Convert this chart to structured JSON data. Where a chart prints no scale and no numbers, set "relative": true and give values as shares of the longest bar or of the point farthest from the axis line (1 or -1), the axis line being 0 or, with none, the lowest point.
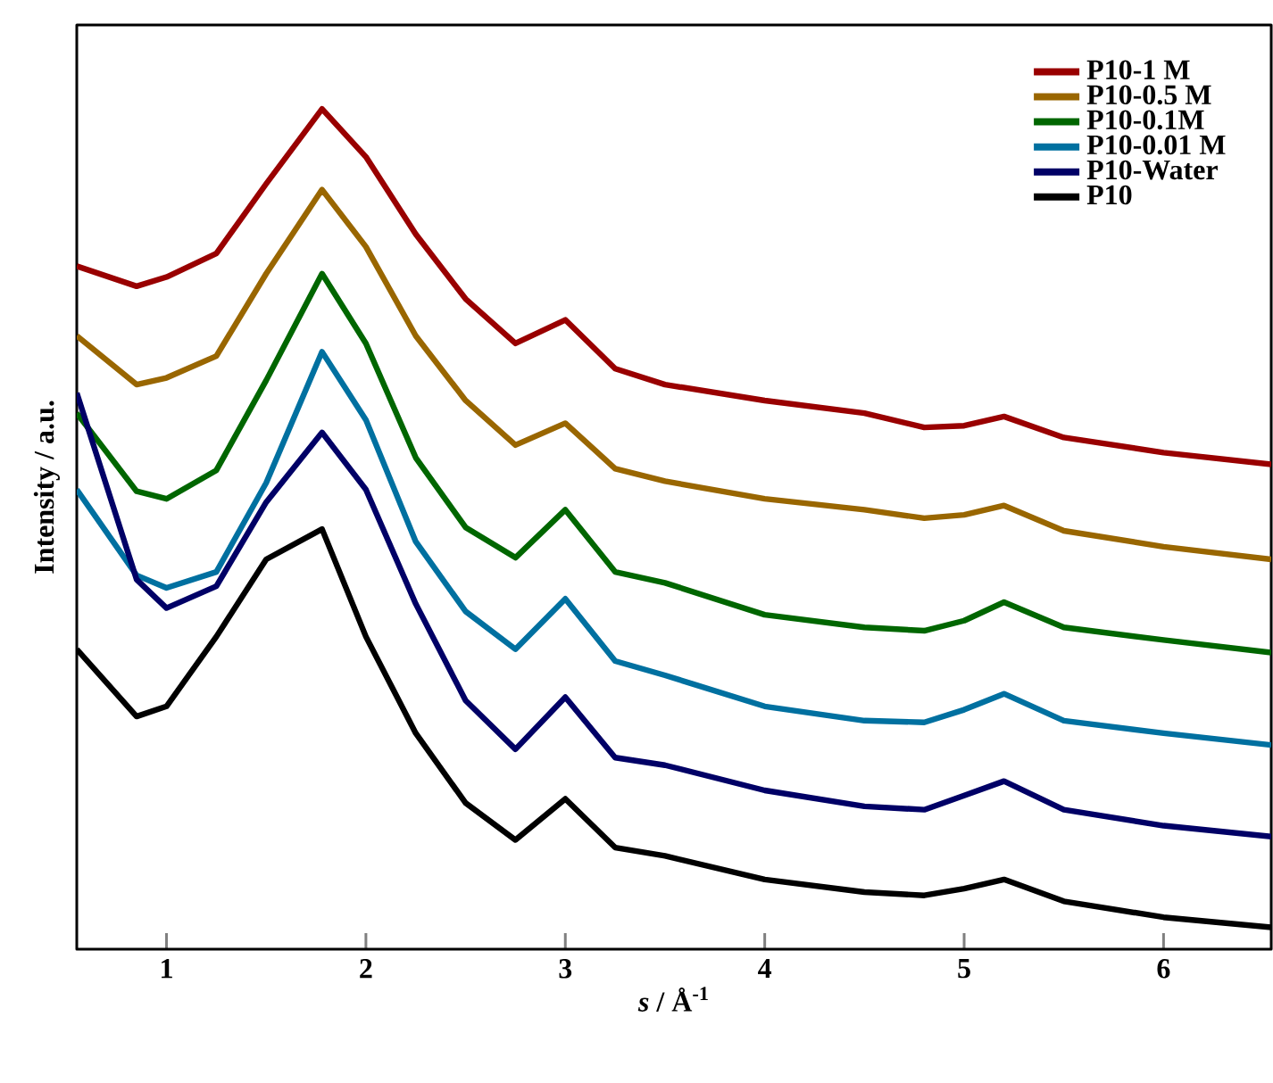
{
  "chart_data": {
    "type": "line",
    "relative": true,
    "xlabel": "*s* / Å$^{-1}$",
    "ylabel": "Intensity / a.u.",
    "x": [
      0.55,
      0.85,
      1.0,
      1.25,
      1.5,
      1.78,
      2.0,
      2.25,
      2.5,
      2.75,
      3.0,
      3.25,
      3.5,
      4.0,
      4.5,
      4.8,
      5.0,
      5.2,
      5.5,
      6.0,
      6.54
    ],
    "xlim": [
      0.55,
      6.54
    ],
    "xticks": [
      1,
      2,
      3,
      4,
      5,
      6
    ],
    "legend": "top right",
    "marker": "none",
    "line_style": "solid",
    "grid": false,
    "series": [
      {
        "name": "P10-1 M",
        "color": "#990000",
        "values": [
          0.813,
          0.789,
          0.8,
          0.828,
          0.911,
          1.0,
          0.943,
          0.851,
          0.774,
          0.721,
          0.749,
          0.691,
          0.672,
          0.653,
          0.638,
          0.621,
          0.623,
          0.634,
          0.609,
          0.591,
          0.577
        ]
      },
      {
        "name": "P10-0.5 M",
        "color": "#996600",
        "values": [
          0.73,
          0.672,
          0.68,
          0.706,
          0.804,
          0.904,
          0.836,
          0.73,
          0.653,
          0.6,
          0.626,
          0.572,
          0.557,
          0.536,
          0.523,
          0.513,
          0.517,
          0.528,
          0.498,
          0.479,
          0.464
        ]
      },
      {
        "name": "P10-0.1M",
        "color": "#006600",
        "values": [
          0.638,
          0.545,
          0.536,
          0.57,
          0.677,
          0.804,
          0.721,
          0.585,
          0.502,
          0.466,
          0.523,
          0.449,
          0.436,
          0.398,
          0.383,
          0.379,
          0.391,
          0.413,
          0.383,
          0.368,
          0.353
        ]
      },
      {
        "name": "P10-0.01 M",
        "color": "#0070a0",
        "values": [
          0.547,
          0.445,
          0.43,
          0.449,
          0.555,
          0.711,
          0.63,
          0.485,
          0.402,
          0.357,
          0.417,
          0.343,
          0.326,
          0.289,
          0.272,
          0.27,
          0.285,
          0.304,
          0.272,
          0.257,
          0.243
        ]
      },
      {
        "name": "P10-Water",
        "color": "#000066",
        "values": [
          0.662,
          0.44,
          0.406,
          0.432,
          0.532,
          0.615,
          0.547,
          0.411,
          0.296,
          0.238,
          0.3,
          0.228,
          0.219,
          0.189,
          0.17,
          0.166,
          0.183,
          0.2,
          0.166,
          0.147,
          0.134
        ]
      },
      {
        "name": "P10",
        "color": "#000000",
        "values": [
          0.357,
          0.277,
          0.289,
          0.372,
          0.464,
          0.5,
          0.372,
          0.257,
          0.174,
          0.13,
          0.179,
          0.121,
          0.111,
          0.083,
          0.068,
          0.064,
          0.072,
          0.083,
          0.057,
          0.038,
          0.026
        ]
      }
    ]
  }
}
